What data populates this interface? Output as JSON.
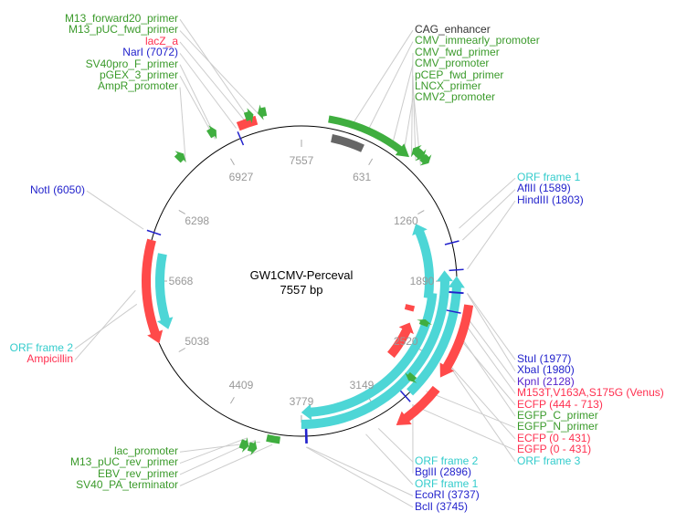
{
  "plasmid": {
    "name": "GW1CMV-Perceval",
    "length_label": "7557 bp",
    "length": 7557
  },
  "colors": {
    "misc": "#3fae3f",
    "cds": "#ff4a4a",
    "orf": "#4dd6d6",
    "enhancer": "#666666",
    "enzyme": "#2222cc",
    "backbone": "#000000",
    "tick": "#999999"
  },
  "ticks": [
    "7557",
    "631",
    "1260",
    "1890",
    "2520",
    "3149",
    "3779",
    "4409",
    "5038",
    "5668",
    "6298",
    "6927"
  ],
  "tick_positions": [
    0,
    631,
    1260,
    1890,
    2520,
    3149,
    3779,
    4409,
    5038,
    5668,
    6298,
    6927
  ],
  "features": [
    {
      "name": "CMV_immearly_promoter",
      "type": "misc",
      "start": 200,
      "end": 860,
      "dir": 1
    },
    {
      "name": "CAG_enhancer",
      "type": "enhancer",
      "start": 250,
      "end": 520,
      "dir": 0
    },
    {
      "name": "CMV_fwd_primer",
      "type": "misc",
      "start": 840,
      "end": 900,
      "dir": -1
    },
    {
      "name": "pCEP_fwd_primer",
      "type": "misc",
      "start": 880,
      "end": 940,
      "dir": 1
    },
    {
      "name": "LNCX_primer",
      "type": "misc",
      "start": 930,
      "end": 990,
      "dir": 1
    },
    {
      "name": "ORF frame 1",
      "type": "orf",
      "start": 1330,
      "end": 2050,
      "dir": -1
    },
    {
      "name": "ORF frame 3",
      "type": "orf",
      "start": 1850,
      "end": 2850,
      "dir": -1
    },
    {
      "name": "ORF frame 1",
      "type": "orf",
      "start": 1800,
      "end": 3780,
      "dir": -1
    },
    {
      "name": "ORF frame 2",
      "type": "orf",
      "start": 2000,
      "end": 3780,
      "dir": 1
    },
    {
      "name": "ECFP (444 - 713)",
      "type": "cds",
      "start": 2060,
      "end": 2620,
      "dir": 1
    },
    {
      "name": "EGFP (0 - 431)",
      "type": "cds",
      "start": 2700,
      "end": 3080,
      "dir": 1
    },
    {
      "name": "ECFP (0 - 431)",
      "type": "cds",
      "start": 2330,
      "end": 2720,
      "dir": -1
    },
    {
      "name": "M153T,V163A,S175G (Venus)",
      "type": "cds",
      "start": 2150,
      "end": 2210,
      "dir": 0
    },
    {
      "name": "EGFP_C_primer",
      "type": "misc",
      "start": 2250,
      "end": 2310,
      "dir": -1
    },
    {
      "name": "EGFP_N_primer",
      "type": "misc",
      "start": 2730,
      "end": 2790,
      "dir": 1
    },
    {
      "name": "SV40_PA_terminator",
      "type": "misc",
      "start": 3940,
      "end": 4040,
      "dir": 0
    },
    {
      "name": "EBV_rev_primer",
      "type": "misc",
      "start": 4090,
      "end": 4150,
      "dir": -1
    },
    {
      "name": "M13_pUC_rev_primer",
      "type": "misc",
      "start": 4150,
      "end": 4210,
      "dir": -1
    },
    {
      "name": "Ampicillin",
      "type": "cds",
      "start": 5170,
      "end": 5990,
      "dir": -1
    },
    {
      "name": "ORF frame 2",
      "type": "orf",
      "start": 5250,
      "end": 5900,
      "dir": -1
    },
    {
      "name": "AmpR_promoter",
      "type": "misc",
      "start": 6600,
      "end": 6660,
      "dir": 1
    },
    {
      "name": "SV40pro_F_primer",
      "type": "misc",
      "start": 6880,
      "end": 6940,
      "dir": 1
    },
    {
      "name": "lacZ_a",
      "type": "cds",
      "start": 7090,
      "end": 7230,
      "dir": 0
    },
    {
      "name": "M13_forward20_primer",
      "type": "misc",
      "start": 7160,
      "end": 7220,
      "dir": 1
    },
    {
      "name": "M13_pUC_fwd_primer",
      "type": "misc",
      "start": 7250,
      "end": 7310,
      "dir": -1
    }
  ],
  "enzymes": [
    {
      "name": "NotI",
      "pos": 6050
    },
    {
      "name": "NarI",
      "pos": 7072
    },
    {
      "name": "AflII",
      "pos": 1589
    },
    {
      "name": "HindIII",
      "pos": 1803
    },
    {
      "name": "StuI",
      "pos": 1977
    },
    {
      "name": "XbaI",
      "pos": 1980
    },
    {
      "name": "KpnI",
      "pos": 2128
    },
    {
      "name": "BglII",
      "pos": 2896
    },
    {
      "name": "EcoRI",
      "pos": 3737
    },
    {
      "name": "BclI",
      "pos": 3745
    }
  ],
  "label_groups": {
    "top_left": [
      {
        "text": "M13_forward20_primer",
        "color": "#3a9a2a",
        "bp": 7190
      },
      {
        "text": "M13_pUC_fwd_primer",
        "color": "#3a9a2a",
        "bp": 7280
      },
      {
        "text": "lacZ_a",
        "color": "#ff3050",
        "bp": 7160
      },
      {
        "text": "NarI (7072)",
        "color": "#2222cc",
        "bp": 7072
      },
      {
        "text": "SV40pro_F_primer",
        "color": "#3a9a2a",
        "bp": 6910
      },
      {
        "text": "pGEX_3_primer",
        "color": "#3a9a2a",
        "bp": 6900
      },
      {
        "text": "AmpR_promoter",
        "color": "#3a9a2a",
        "bp": 6630
      }
    ],
    "top_right": [
      {
        "text": "CAG_enhancer",
        "color": "#333333",
        "bp": 380
      },
      {
        "text": "CMV_immearly_promoter",
        "color": "#3a9a2a",
        "bp": 500
      },
      {
        "text": "CMV_fwd_primer",
        "color": "#3a9a2a",
        "bp": 870
      },
      {
        "text": "CMV_promoter",
        "color": "#3a9a2a",
        "bp": 700
      },
      {
        "text": "pCEP_fwd_primer",
        "color": "#3a9a2a",
        "bp": 910
      },
      {
        "text": "LNCX_primer",
        "color": "#3a9a2a",
        "bp": 960
      },
      {
        "text": "CMV2_promoter",
        "color": "#3a9a2a",
        "bp": 800
      }
    ],
    "right_mid": [
      {
        "text": "ORF frame 1",
        "color": "#33cccc",
        "bp": 1500
      },
      {
        "text": "AflII (1589)",
        "color": "#2222cc",
        "bp": 1589
      },
      {
        "text": "HindIII (1803)",
        "color": "#2222cc",
        "bp": 1803
      }
    ],
    "right_low": [
      {
        "text": "StuI (1977)",
        "color": "#2222cc",
        "bp": 1977
      },
      {
        "text": "XbaI (1980)",
        "color": "#2222cc",
        "bp": 1980
      },
      {
        "text": "KpnI (2128)",
        "color": "#5522cc",
        "bp": 2128
      },
      {
        "text": "M153T,V163A,S175G (Venus)",
        "color": "#ff3050",
        "bp": 2180
      },
      {
        "text": "ECFP (444 - 713)",
        "color": "#ff3050",
        "bp": 2300
      },
      {
        "text": "EGFP_C_primer",
        "color": "#3a9a2a",
        "bp": 2280
      },
      {
        "text": "EGFP_N_primer",
        "color": "#3a9a2a",
        "bp": 2760
      },
      {
        "text": "ECFP (0 - 431)",
        "color": "#ff3050",
        "bp": 2500
      },
      {
        "text": "EGFP (0 - 431)",
        "color": "#ff3050",
        "bp": 2900
      },
      {
        "text": "ORF frame 3",
        "color": "#33cccc",
        "bp": 2500
      }
    ],
    "bottom_center": [
      {
        "text": "ORF frame 2",
        "color": "#33cccc",
        "bp": 3200
      },
      {
        "text": "BglII (2896)",
        "color": "#2222cc",
        "bp": 2896
      },
      {
        "text": "ORF frame 1",
        "color": "#33cccc",
        "bp": 3300
      },
      {
        "text": "EcoRI (3737)",
        "color": "#2222cc",
        "bp": 3737
      },
      {
        "text": "BclI (3745)",
        "color": "#2222cc",
        "bp": 3745
      }
    ],
    "bottom_left": [
      {
        "text": "lac_promoter",
        "color": "#3a9a2a",
        "bp": 4080
      },
      {
        "text": "M13_pUC_rev_primer",
        "color": "#3a9a2a",
        "bp": 4180
      },
      {
        "text": "EBV_rev_primer",
        "color": "#3a9a2a",
        "bp": 4120
      },
      {
        "text": "SV40_PA_terminator",
        "color": "#3a9a2a",
        "bp": 3990
      }
    ],
    "left_notI": [
      {
        "text": "NotI (6050)",
        "color": "#2222cc",
        "bp": 6050
      }
    ],
    "left_amp": [
      {
        "text": "ORF frame 2",
        "color": "#33cccc",
        "bp": 5500
      },
      {
        "text": "Ampicillin",
        "color": "#ff3050",
        "bp": 5600
      }
    ]
  }
}
